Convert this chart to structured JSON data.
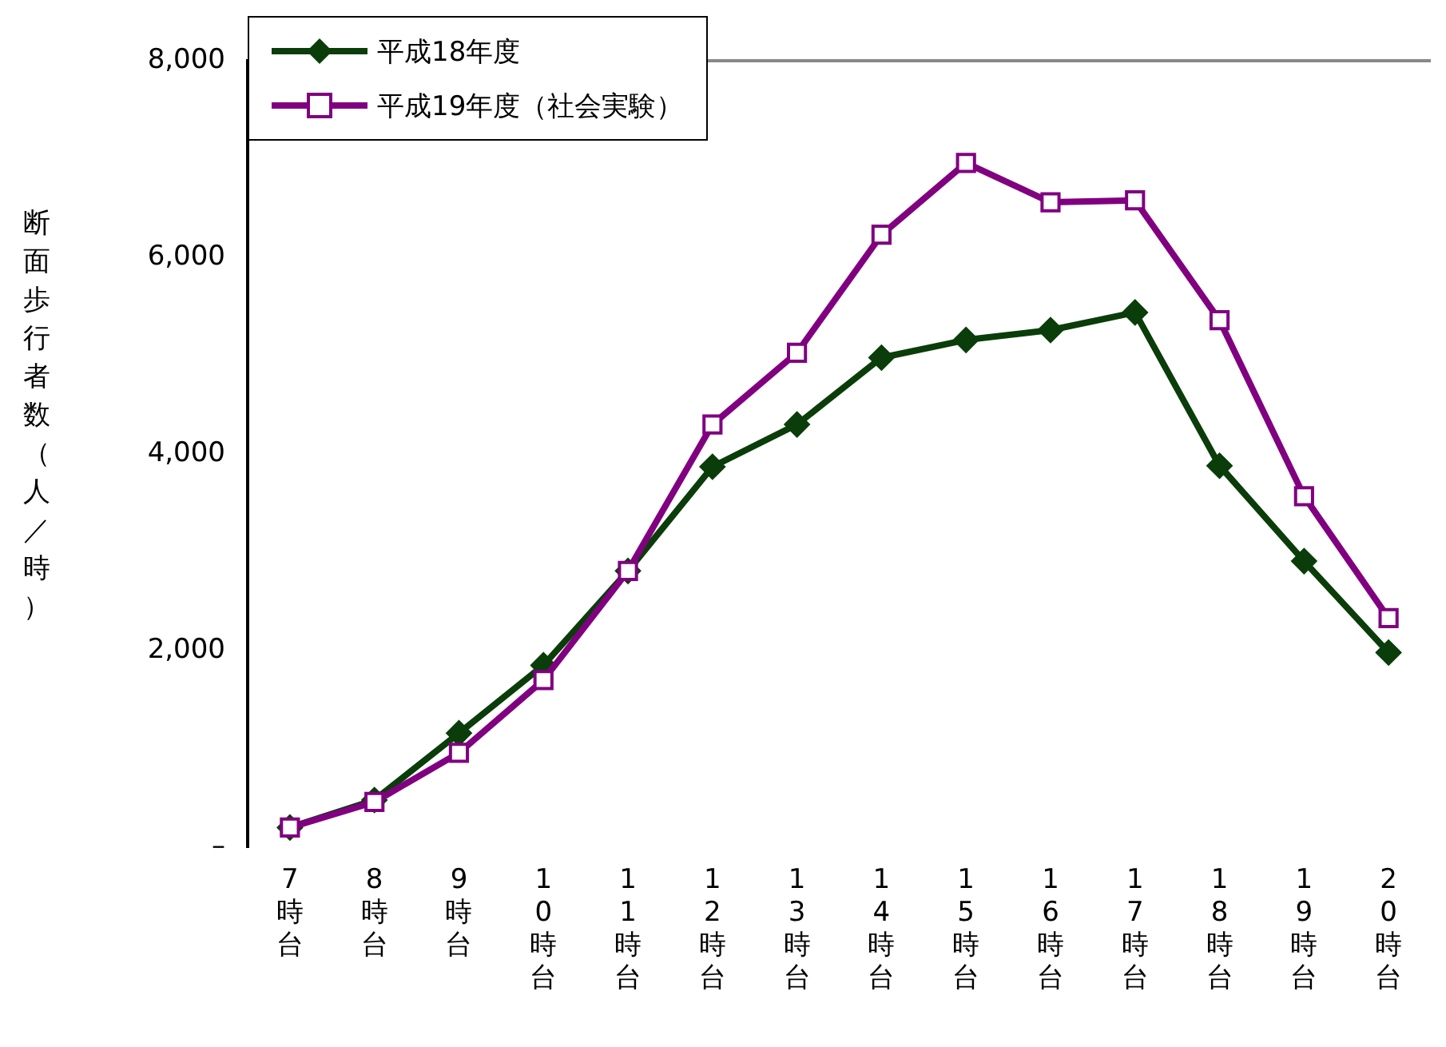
{
  "chart_data": {
    "type": "line",
    "ylabel": "断面歩行者数（人／時）",
    "categories": [
      "7時台",
      "8時台",
      "9時台",
      "10時台",
      "11時台",
      "12時台",
      "13時台",
      "14時台",
      "15時台",
      "16時台",
      "17時台",
      "18時台",
      "19時台",
      "20時台"
    ],
    "series": [
      {
        "name": "平成18年度",
        "color": "#0a3d0a",
        "marker": "diamond",
        "values": [
          200,
          480,
          1160,
          1850,
          2810,
          3870,
          4300,
          4980,
          5160,
          5260,
          5440,
          3880,
          2910,
          1980
        ]
      },
      {
        "name": "平成19年度（社会実験）",
        "color": "#800080",
        "marker": "square",
        "values": [
          200,
          460,
          960,
          1700,
          2810,
          4300,
          5030,
          6230,
          6960,
          6560,
          6580,
          5360,
          3570,
          2330
        ]
      }
    ],
    "ylim": [
      0,
      8000
    ],
    "yticks": [
      {
        "value": 0,
        "label": "–"
      },
      {
        "value": 2000,
        "label": "2,000"
      },
      {
        "value": 4000,
        "label": "4,000"
      },
      {
        "value": 6000,
        "label": "6,000"
      },
      {
        "value": 8000,
        "label": "8,000"
      }
    ],
    "grid": false,
    "legend": "top left",
    "line_style": "solid"
  }
}
